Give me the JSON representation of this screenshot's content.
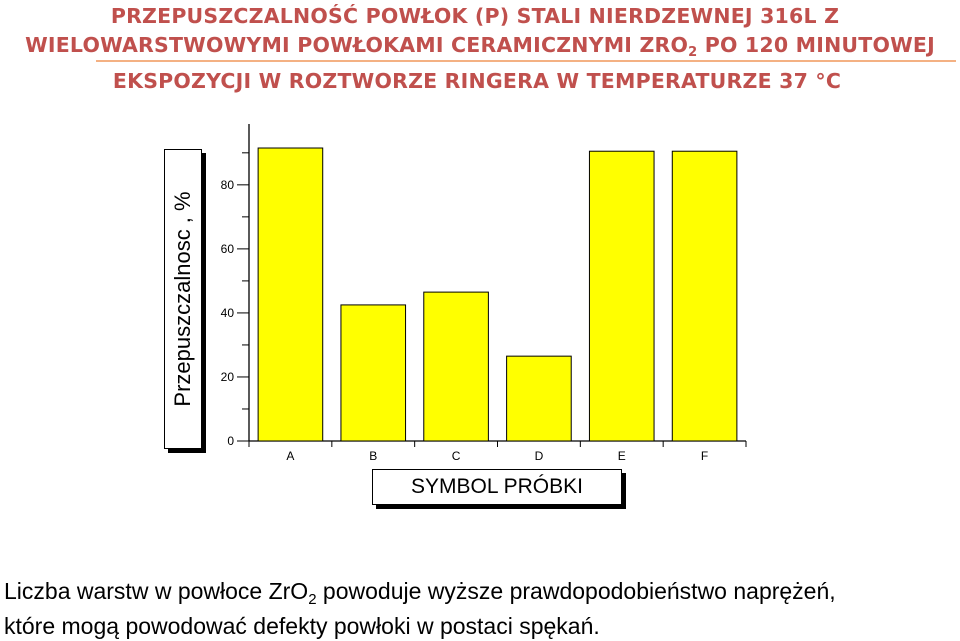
{
  "title": {
    "line1": "PRZEPUSZCZALNOŚĆ POWŁOK (P) STALI NIERDZEWNEJ 316L Z",
    "line2_a": "WIELOWARSTWOWYMI POWŁOKAMI CERAMICZNYMI ZRO",
    "line2_sub": "2",
    "line2_b": " PO 120 MINUTOWEJ",
    "line3": "EKSPOZYCJI W ROZTWORZE RINGERA W TEMPERATURZE 37 °C"
  },
  "chart_data": {
    "type": "bar",
    "categories": [
      "A",
      "B",
      "C",
      "D",
      "E",
      "F"
    ],
    "values": [
      91.5,
      42.5,
      46.5,
      26.5,
      90.5,
      90.5
    ],
    "xlabel": "SYMBOL PRÓBKI",
    "ylabel": "Przepuszczalnosc , %",
    "yticks": [
      "0",
      "20",
      "40",
      "60",
      "80"
    ],
    "ylim": [
      0,
      99
    ],
    "grid": false,
    "bar_color": "#ffff00"
  },
  "footnote": {
    "part1": "Liczba warstw w powłoce ZrO",
    "sub": "2",
    "part2": " powoduje wyższe prawdopodobieństwo naprężeń,",
    "line2": "które mogą powodować defekty powłoki w postaci spękań."
  }
}
